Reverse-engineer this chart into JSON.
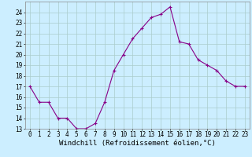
{
  "x": [
    0,
    1,
    2,
    3,
    4,
    5,
    6,
    7,
    8,
    9,
    10,
    11,
    12,
    13,
    14,
    15,
    16,
    17,
    18,
    19,
    20,
    21,
    22,
    23
  ],
  "y": [
    17,
    15.5,
    15.5,
    14,
    14,
    13,
    13,
    13.5,
    15.5,
    18.5,
    20,
    21.5,
    22.5,
    23.5,
    23.8,
    24.5,
    21.2,
    21,
    19.5,
    19,
    18.5,
    17.5,
    17,
    17
  ],
  "line_color": "#880088",
  "marker": "+",
  "marker_size": 3,
  "bg_color": "#cceeff",
  "grid_color": "#aacccc",
  "xlabel": "Windchill (Refroidissement éolien,°C)",
  "xlabel_fontsize": 6.5,
  "tick_fontsize": 5.5,
  "ylim": [
    13,
    25
  ],
  "xlim": [
    -0.5,
    23.5
  ],
  "yticks": [
    13,
    14,
    15,
    16,
    17,
    18,
    19,
    20,
    21,
    22,
    23,
    24
  ],
  "xticks": [
    0,
    1,
    2,
    3,
    4,
    5,
    6,
    7,
    8,
    9,
    10,
    11,
    12,
    13,
    14,
    15,
    16,
    17,
    18,
    19,
    20,
    21,
    22,
    23
  ]
}
